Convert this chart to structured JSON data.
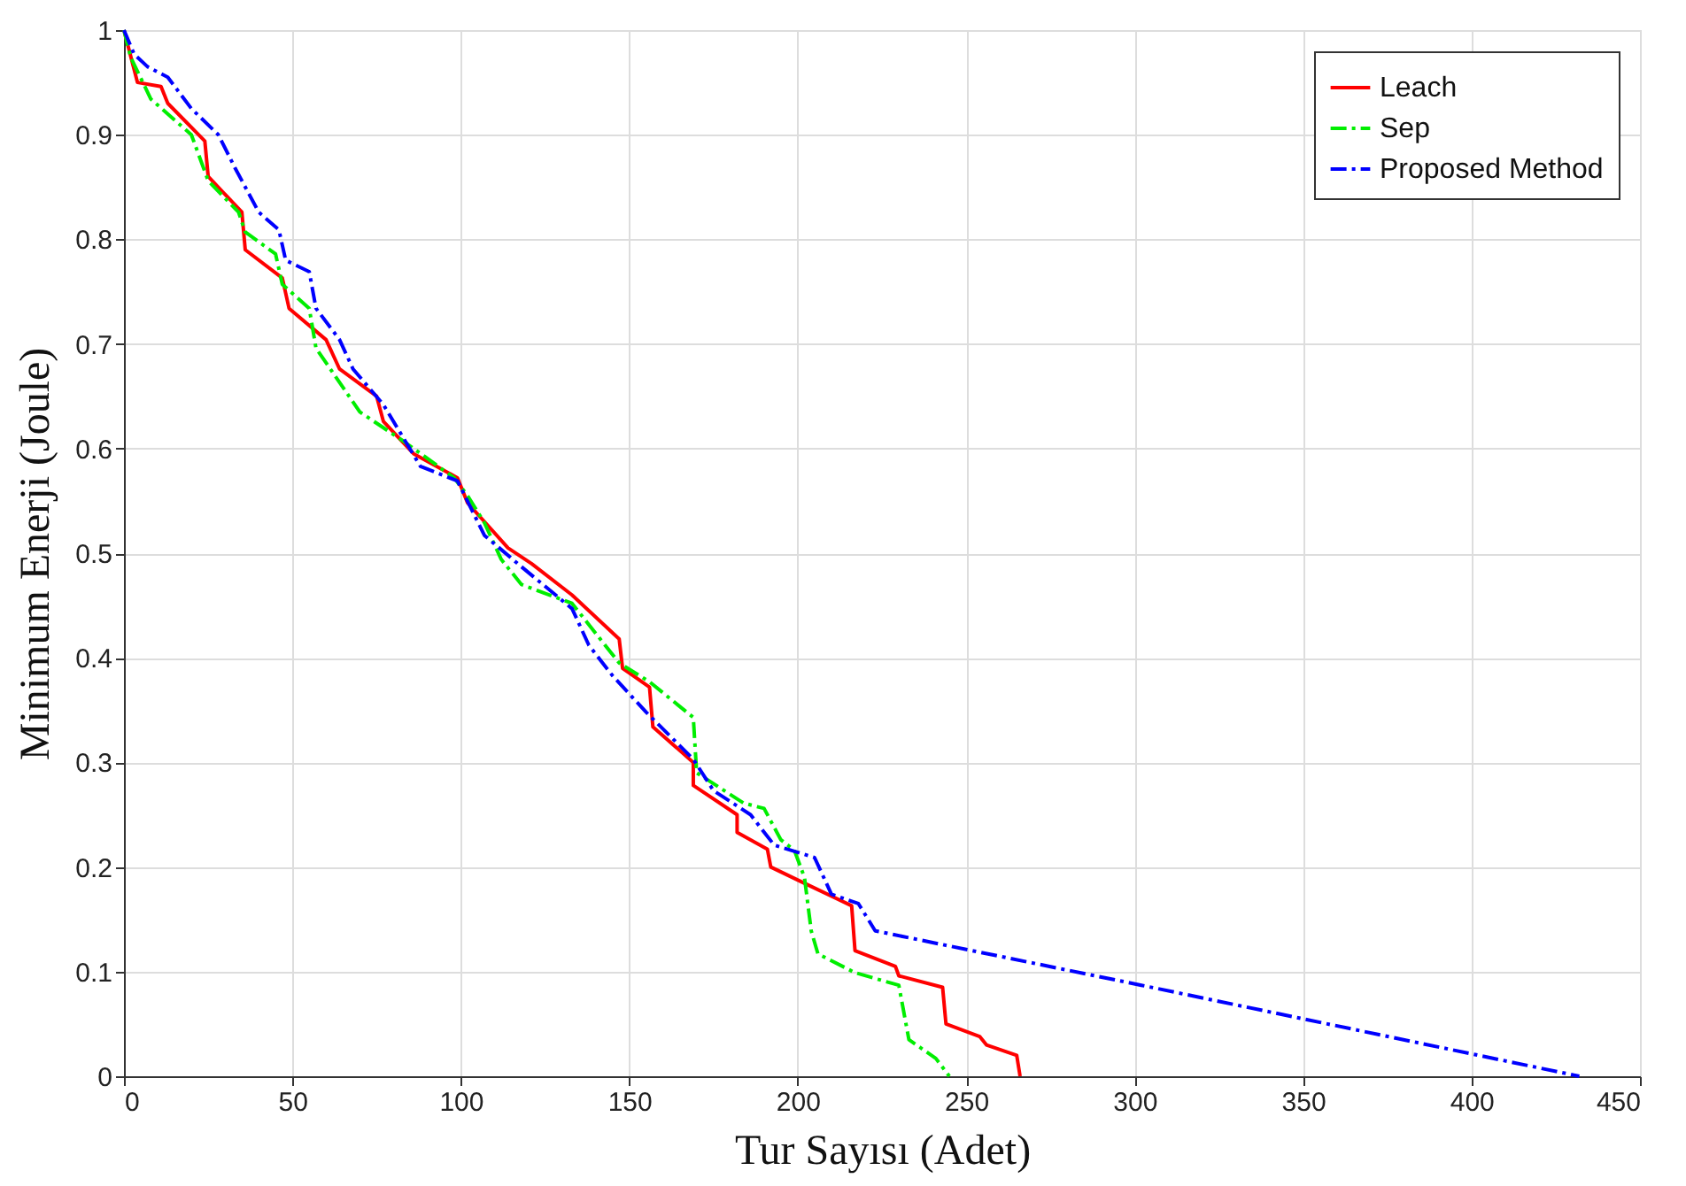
{
  "chart_data": {
    "type": "line",
    "xlabel": "Tur Sayısı (Adet)",
    "ylabel": "Minimum Enerji (Joule)",
    "xlim": [
      0,
      450
    ],
    "xticks": [
      0,
      50,
      100,
      150,
      200,
      250,
      300,
      350,
      400,
      450
    ],
    "ylim": [
      0,
      1
    ],
    "yticks": [
      0,
      0.1,
      0.2,
      0.3,
      0.4,
      0.5,
      0.6,
      0.7,
      0.8,
      0.9,
      1
    ],
    "grid": true,
    "legend": "top right",
    "marker": "none",
    "series": [
      {
        "name": "Leach",
        "color": "#ff0000",
        "line_style": "solid",
        "x": [
          0,
          4,
          11,
          13,
          24,
          25,
          35,
          36,
          47,
          49,
          60,
          64,
          75,
          77,
          86,
          99,
          102,
          114,
          121,
          133,
          147,
          148,
          156,
          157,
          169,
          169,
          182,
          182,
          191,
          192,
          201,
          216,
          217,
          229,
          230,
          243,
          244,
          254,
          256,
          265,
          266
        ],
        "values": [
          1,
          0.95,
          0.946,
          0.93,
          0.894,
          0.86,
          0.826,
          0.79,
          0.763,
          0.734,
          0.704,
          0.676,
          0.65,
          0.626,
          0.595,
          0.572,
          0.548,
          0.505,
          0.49,
          0.46,
          0.418,
          0.39,
          0.372,
          0.334,
          0.3,
          0.278,
          0.25,
          0.233,
          0.217,
          0.2,
          0.186,
          0.163,
          0.12,
          0.105,
          0.096,
          0.085,
          0.05,
          0.038,
          0.03,
          0.02,
          0
        ]
      },
      {
        "name": "Sep",
        "color": "#00ee00",
        "line_style": "dashed",
        "x": [
          0,
          2,
          8,
          20,
          25,
          34,
          36,
          45,
          47,
          55,
          57,
          70,
          83,
          98,
          102,
          107,
          112,
          118,
          133,
          147,
          156,
          169,
          170,
          184,
          190,
          195,
          199,
          202,
          204,
          206,
          217,
          230,
          233,
          241,
          245
        ],
        "values": [
          1,
          0.974,
          0.934,
          0.9,
          0.856,
          0.826,
          0.807,
          0.786,
          0.757,
          0.734,
          0.696,
          0.635,
          0.607,
          0.572,
          0.555,
          0.529,
          0.494,
          0.47,
          0.452,
          0.395,
          0.377,
          0.343,
          0.29,
          0.261,
          0.256,
          0.226,
          0.216,
          0.19,
          0.139,
          0.117,
          0.099,
          0.087,
          0.035,
          0.017,
          0
        ]
      },
      {
        "name": "Proposed Method",
        "color": "#0000ff",
        "line_style": "dashed",
        "x": [
          0,
          3,
          7,
          13,
          20,
          28,
          33,
          40,
          46,
          48,
          55,
          57,
          64,
          68,
          77,
          88,
          99,
          107,
          118,
          133,
          138,
          145,
          155,
          169,
          175,
          186,
          193,
          205,
          210,
          218,
          223,
          302,
          432
        ],
        "values": [
          1,
          0.977,
          0.965,
          0.955,
          0.925,
          0.9,
          0.868,
          0.826,
          0.809,
          0.78,
          0.769,
          0.734,
          0.704,
          0.676,
          0.642,
          0.583,
          0.569,
          0.517,
          0.487,
          0.447,
          0.412,
          0.383,
          0.348,
          0.303,
          0.273,
          0.25,
          0.221,
          0.209,
          0.174,
          0.165,
          0.139,
          0.087,
          0
        ]
      }
    ]
  }
}
